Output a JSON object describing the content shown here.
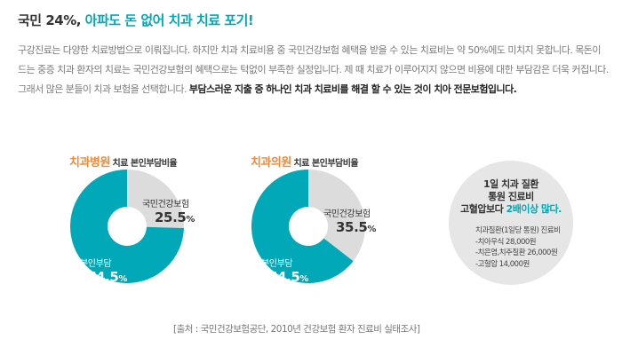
{
  "headline": {
    "part1": "국민 24%,",
    "part2": "아파도 돈 없어 치과 치료 포기!"
  },
  "paragraph": {
    "normal": "구강진료는 다양한 치료방법으로 이뤄집니다. 하지만 치과 치료비용 중 국민건강보험 혜택을 받을 수 있는 치료비는 약 50%에도 미치지 못합니다. 목돈이 드는 중증 치과 환자의 치료는 국민건강보험의 혜택으로는 턱없이 부족한 실정입니다. 제 때 치료가 이루어지지 않으면 비용에 대한 부담감은 더욱 커집니다. 그래서 많은 분들이 치과 보험을 선택합니다.",
    "bold": "부담스러운 지출 중 하나인 치과 치료비를 해결 할 수 있는 것이 치아 전문보험입니다."
  },
  "chart_data": [
    {
      "type": "pie",
      "title_highlight": "치과병원",
      "title_rest": "치료 본인부담비율",
      "slices": [
        {
          "label": "국민건강보험",
          "value": 25.5,
          "unit": "%",
          "color": "#dcdcdc"
        },
        {
          "label": "본인부담",
          "value": 74.5,
          "unit": "%",
          "color": "#00a8b8"
        }
      ]
    },
    {
      "type": "pie",
      "title_highlight": "치과의원",
      "title_rest": "치료 본인부담비율",
      "slices": [
        {
          "label": "국민건강보험",
          "value": 35.5,
          "unit": "%",
          "color": "#dcdcdc"
        },
        {
          "label": "본인부담",
          "value": 64.5,
          "unit": "%",
          "color": "#00a8b8"
        }
      ]
    }
  ],
  "info_circle": {
    "line1": "1일 치과 질환",
    "line2": "통원 진료비",
    "line3_prefix": "고혈압보다",
    "line3_highlight": "2배이상 많다.",
    "items": [
      "치과질환(1일당 통원) 진료비",
      "-치아우식 28,000원",
      "-치은염,치주질환 26,000원",
      "-고혈압 14,000원"
    ]
  },
  "source": "[출처 : 국민건강보험공단, 2010년 건강보험 환자 진료비 실태조사]",
  "colors": {
    "accent": "#00a8b8",
    "title_orange": "#f08a3a",
    "gray_slice": "#dcdcdc"
  }
}
